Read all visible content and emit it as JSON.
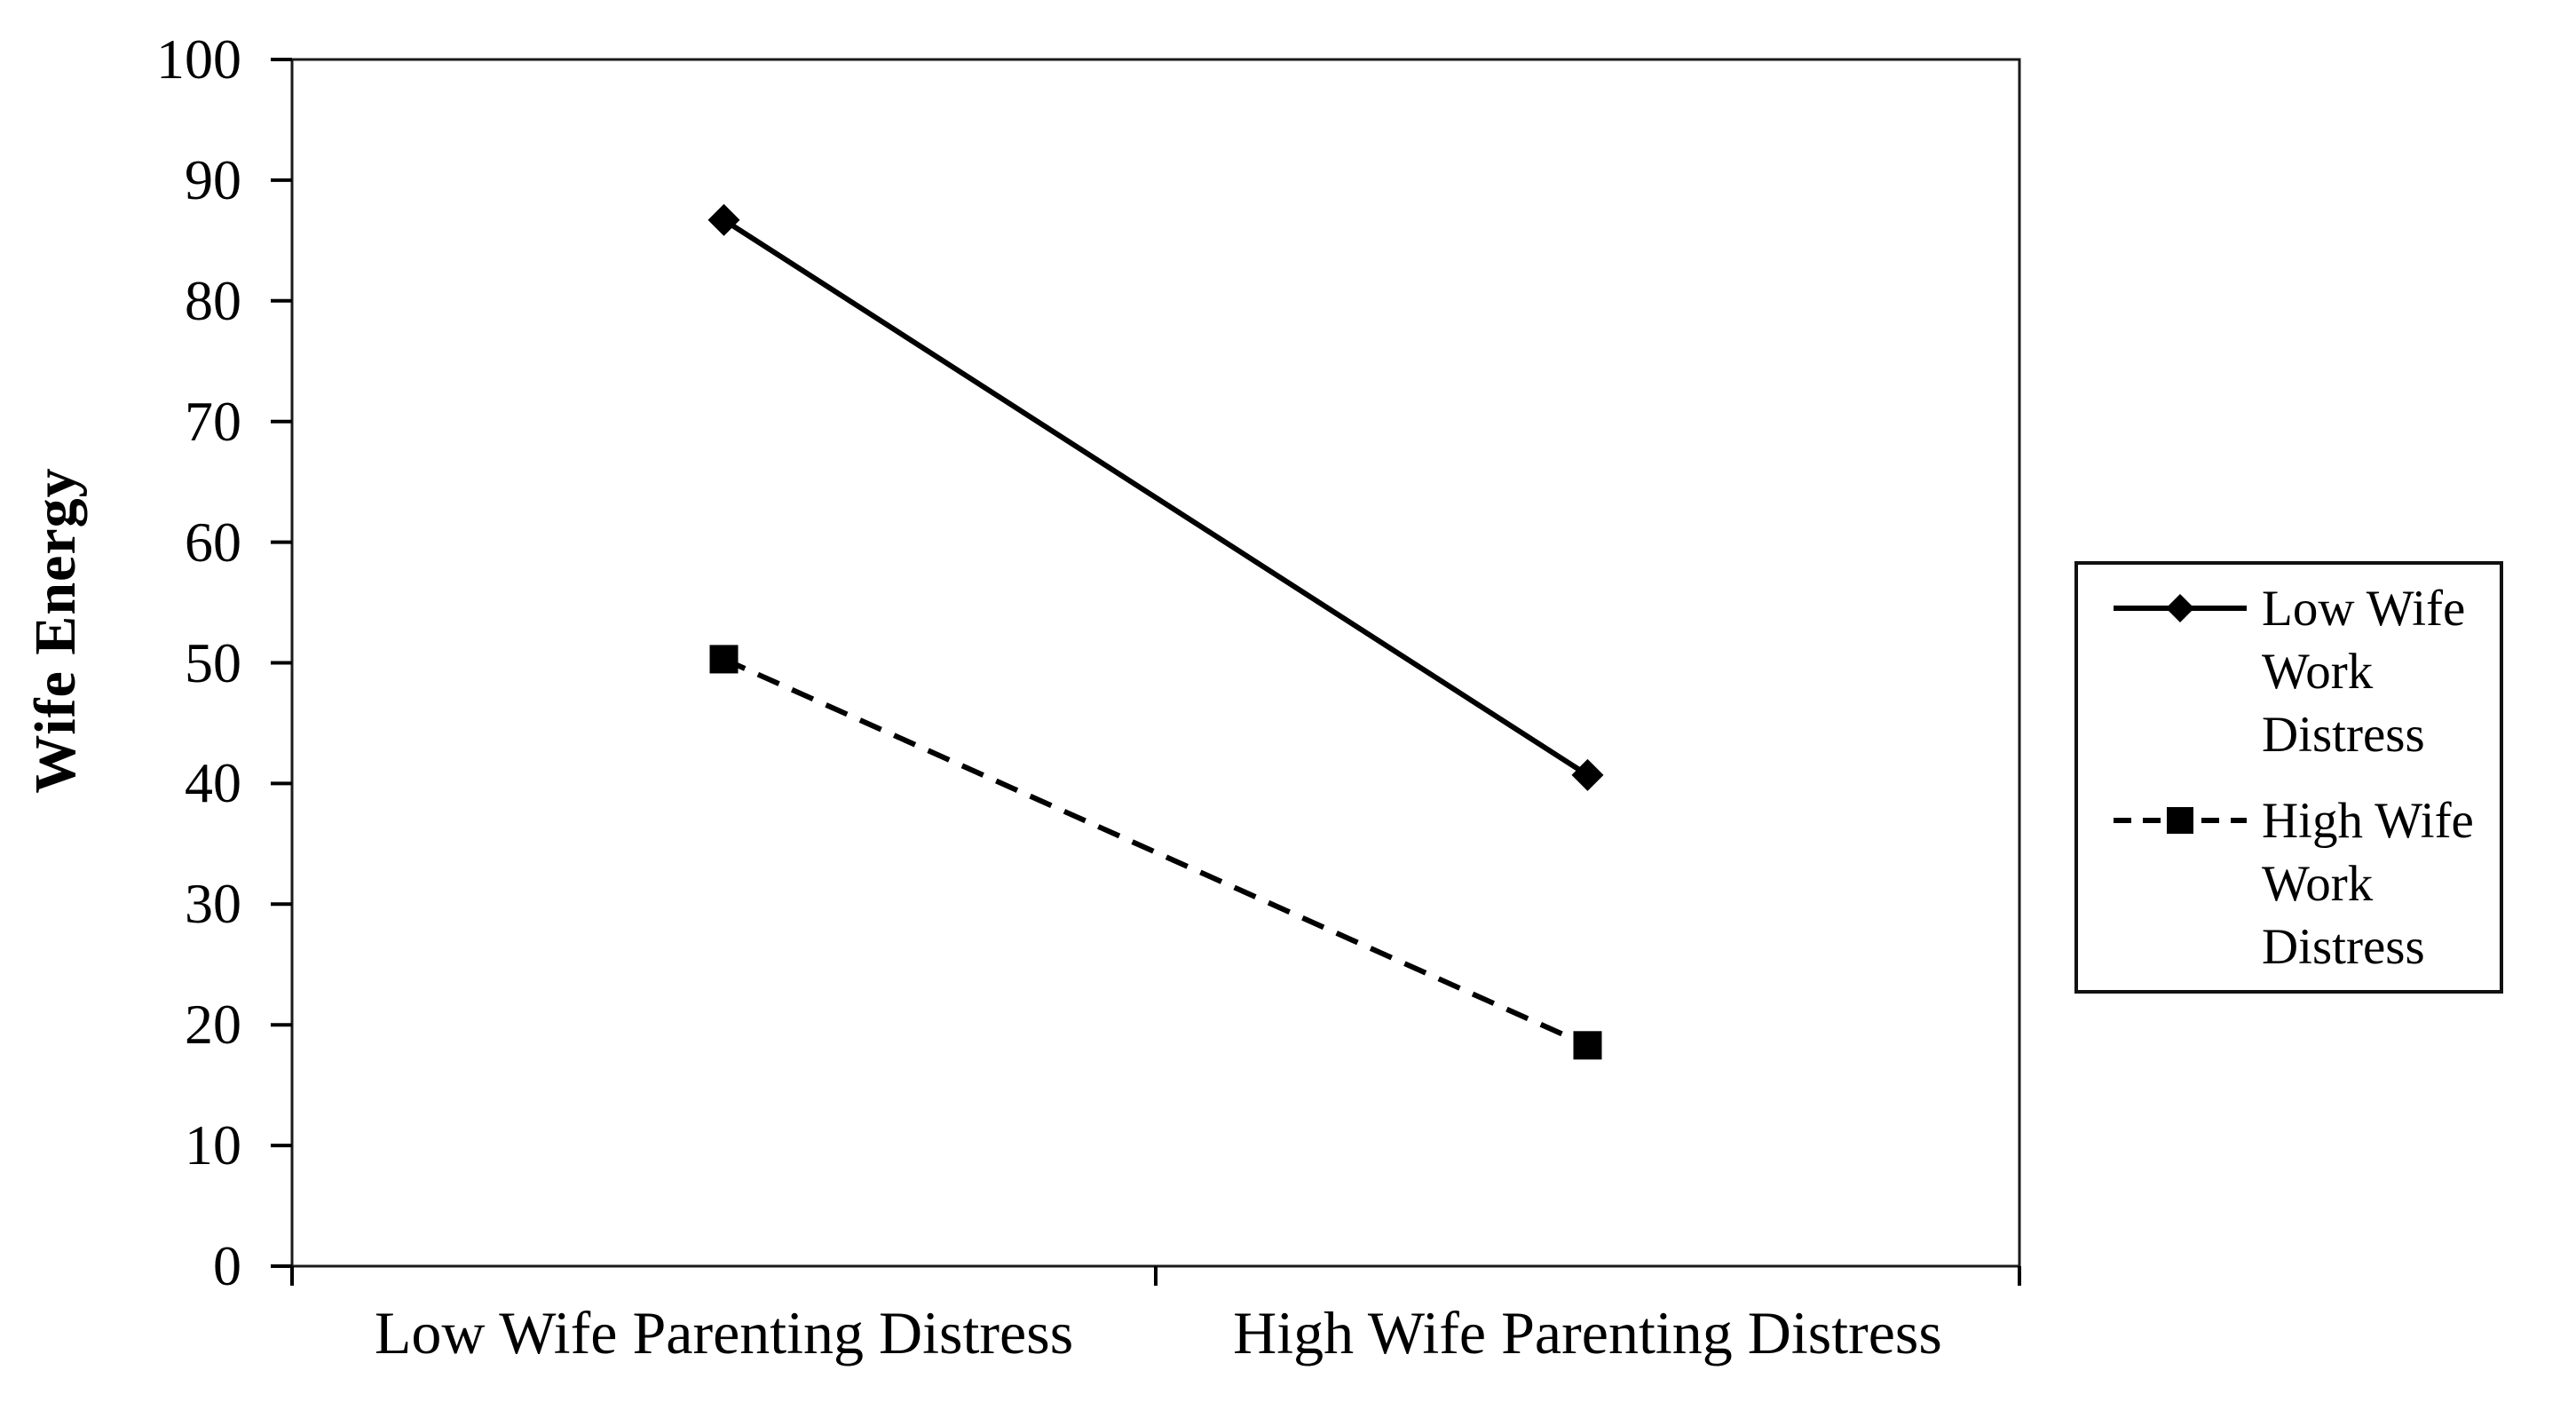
{
  "chart_data": {
    "type": "line",
    "categories": [
      "Low Wife Parenting Distress",
      "High Wife Parenting Distress"
    ],
    "series": [
      {
        "name": "Low Wife Work Distress",
        "values": [
          86.7,
          40.7
        ],
        "line_style": "solid",
        "marker": "diamond"
      },
      {
        "name": "High Wife Work Distress",
        "values": [
          50.3,
          18.3
        ],
        "line_style": "dashed",
        "marker": "square"
      }
    ],
    "title": "",
    "xlabel": "",
    "ylabel": "Wife Energy",
    "ylim": [
      0,
      100
    ],
    "yticks": [
      0,
      10,
      20,
      30,
      40,
      50,
      60,
      70,
      80,
      90,
      100
    ],
    "grid": false,
    "legend_position": "right",
    "colors": {
      "line": "#000000",
      "text": "#000000",
      "background": "#ffffff",
      "frame": "#1a1a1a"
    }
  }
}
